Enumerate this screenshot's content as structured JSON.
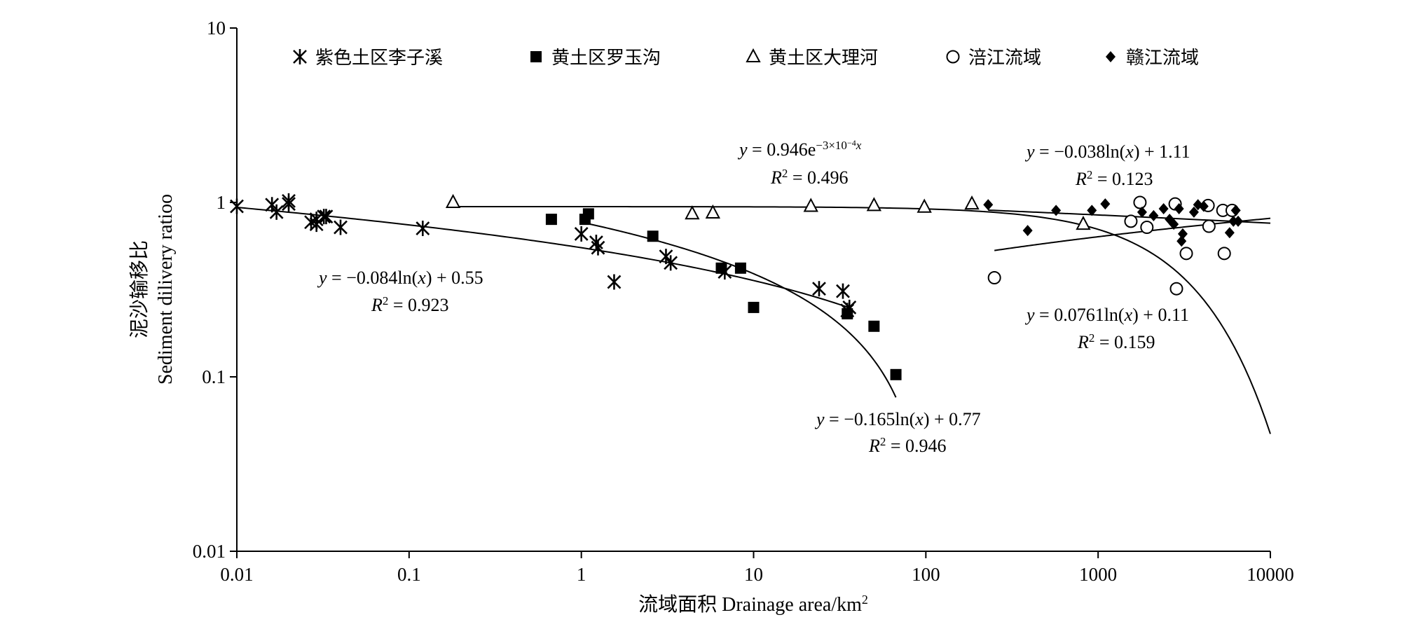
{
  "chart_data": {
    "type": "scatter",
    "x_scale": "log",
    "y_scale": "log",
    "xlim": [
      0.01,
      10000
    ],
    "ylim": [
      0.01,
      10
    ],
    "x_ticks": [
      "0.01",
      "0.1",
      "1",
      "10",
      "100",
      "1000",
      "10000"
    ],
    "y_ticks": [
      "10",
      "1",
      "0.1",
      "0.01"
    ],
    "xlabel": "流域面积 Drainage area/km",
    "xlabel_sup": "2",
    "ylabel_cn": "泥沙输移比",
    "ylabel_en": "Sediment dilivery ratioo",
    "legend_position": "top",
    "series": [
      {
        "name": "紫色土区李子溪",
        "marker": "asterisk",
        "points": [
          [
            0.01,
            0.95
          ],
          [
            0.016,
            0.97
          ],
          [
            0.017,
            0.88
          ],
          [
            0.02,
            0.98
          ],
          [
            0.02,
            1.02
          ],
          [
            0.027,
            0.77
          ],
          [
            0.029,
            0.8
          ],
          [
            0.029,
            0.75
          ],
          [
            0.032,
            0.83
          ],
          [
            0.033,
            0.83
          ],
          [
            0.04,
            0.72
          ],
          [
            0.12,
            0.71
          ],
          [
            1.0,
            0.66
          ],
          [
            1.22,
            0.59
          ],
          [
            1.25,
            0.55
          ],
          [
            1.55,
            0.35
          ],
          [
            3.1,
            0.49
          ],
          [
            3.3,
            0.45
          ],
          [
            6.8,
            0.4
          ],
          [
            24,
            0.32
          ],
          [
            33,
            0.31
          ],
          [
            35,
            0.24
          ],
          [
            36,
            0.25
          ]
        ]
      },
      {
        "name": "黄土区罗玉沟",
        "marker": "square",
        "points": [
          [
            0.67,
            0.8
          ],
          [
            1.05,
            0.8
          ],
          [
            1.1,
            0.86
          ],
          [
            2.6,
            0.64
          ],
          [
            6.5,
            0.42
          ],
          [
            8.4,
            0.42
          ],
          [
            10.0,
            0.25
          ],
          [
            35,
            0.23
          ],
          [
            50,
            0.195
          ],
          [
            67,
            0.103
          ]
        ]
      },
      {
        "name": "黄土区大理河",
        "marker": "triangle",
        "points": [
          [
            0.18,
            1.0
          ],
          [
            4.4,
            0.86
          ],
          [
            5.8,
            0.87
          ],
          [
            21.5,
            0.95
          ],
          [
            50,
            0.96
          ],
          [
            98,
            0.94
          ],
          [
            185,
            0.98
          ],
          [
            820,
            0.75
          ]
        ]
      },
      {
        "name": "涪江流域",
        "marker": "circle",
        "points": [
          [
            250,
            0.37
          ],
          [
            1550,
            0.78
          ],
          [
            1750,
            1.0
          ],
          [
            1920,
            0.72
          ],
          [
            2800,
            0.98
          ],
          [
            2850,
            0.32
          ],
          [
            3250,
            0.51
          ],
          [
            4350,
            0.96
          ],
          [
            4400,
            0.73
          ],
          [
            5300,
            0.9
          ],
          [
            5400,
            0.51
          ],
          [
            6000,
            0.9
          ]
        ]
      },
      {
        "name": "赣江流域",
        "marker": "diamond",
        "points": [
          [
            230,
            0.97
          ],
          [
            390,
            0.69
          ],
          [
            570,
            0.9
          ],
          [
            920,
            0.9
          ],
          [
            1100,
            0.98
          ],
          [
            1800,
            0.88
          ],
          [
            2100,
            0.84
          ],
          [
            2400,
            0.92
          ],
          [
            2600,
            0.8
          ],
          [
            2750,
            0.75
          ],
          [
            2950,
            0.92
          ],
          [
            3050,
            0.6
          ],
          [
            3100,
            0.66
          ],
          [
            3600,
            0.88
          ],
          [
            3800,
            0.97
          ],
          [
            4100,
            0.95
          ],
          [
            5800,
            0.67
          ],
          [
            6100,
            0.78
          ],
          [
            6300,
            0.9
          ],
          [
            6500,
            0.78
          ]
        ]
      }
    ],
    "fit_curves": [
      {
        "kind": "ln",
        "a": -0.084,
        "b": 0.55,
        "x_range": [
          0.01,
          36
        ]
      },
      {
        "kind": "ln",
        "a": -0.165,
        "b": 0.77,
        "x_range": [
          1.05,
          67
        ]
      },
      {
        "kind": "exp",
        "a": 0.946,
        "k": -0.0003,
        "x_range": [
          0.18,
          10000
        ]
      },
      {
        "kind": "ln",
        "a": -0.038,
        "b": 1.11,
        "x_range": [
          230,
          10000
        ]
      },
      {
        "kind": "ln",
        "a": 0.0761,
        "b": 0.11,
        "x_range": [
          250,
          10000
        ]
      }
    ],
    "annotations": [
      {
        "y": "y",
        "eq": " = −0.084ln(",
        "x": "x",
        "tail": ") + 0.55",
        "r": "R",
        "r_sup": "2",
        "r_val": " = 0.923"
      },
      {
        "y": "y",
        "eq": " = 0.946e",
        "exp": "−3×10",
        "exp_sup": "−4",
        "x": "x",
        "r": "R",
        "r_sup": "2",
        "r_val": " = 0.496"
      },
      {
        "y": "y",
        "eq": " = −0.038ln(",
        "x": "x",
        "tail": ") + 1.11",
        "r": "R",
        "r_sup": "2",
        "r_val": " = 0.123"
      },
      {
        "y": "y",
        "eq": " = 0.0761ln(",
        "x": "x",
        "tail": ") + 0.11",
        "r": "R",
        "r_sup": "2",
        "r_val": " = 0.159"
      },
      {
        "y": "y",
        "eq": " = −0.165ln(",
        "x": "x",
        "tail": ") + 0.77",
        "r": "R",
        "r_sup": "2",
        "r_val": " = 0.946"
      }
    ]
  }
}
